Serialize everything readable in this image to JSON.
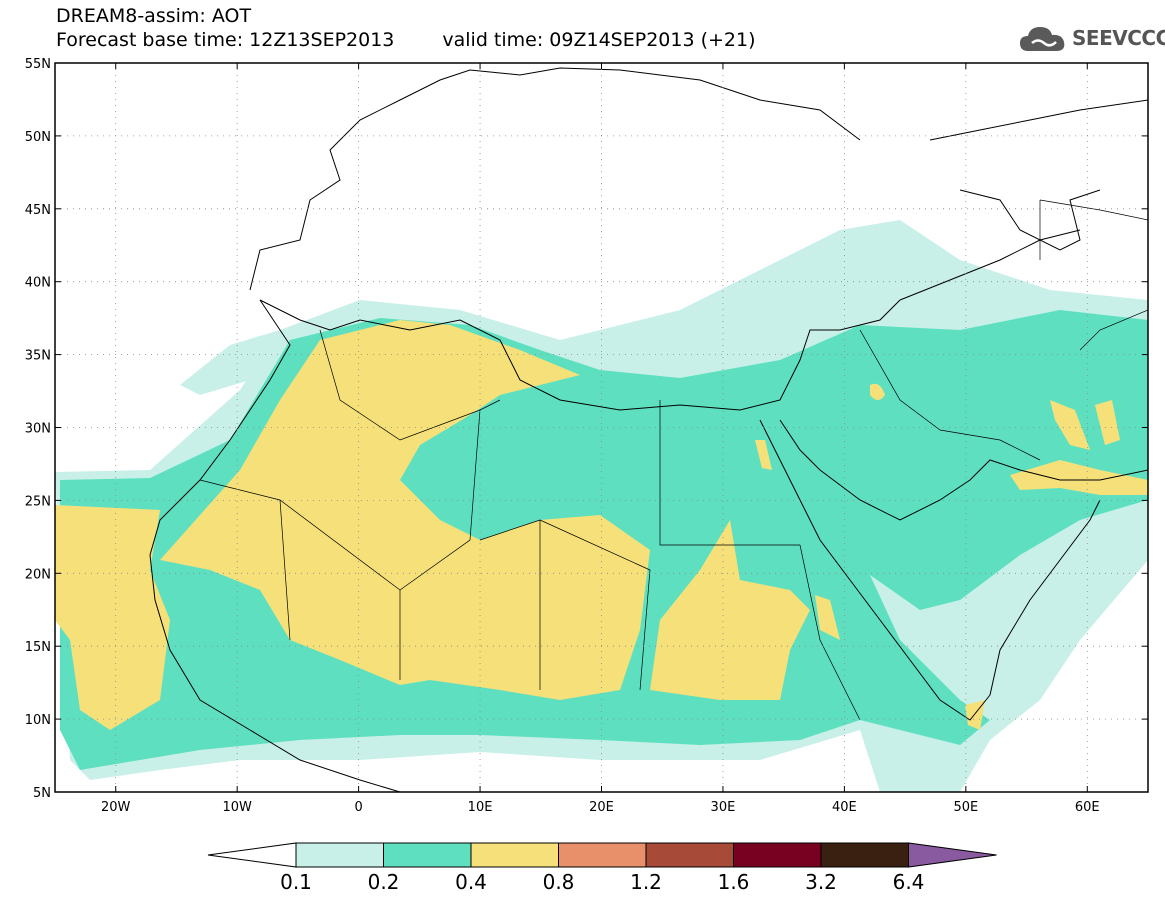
{
  "title": {
    "line1": "DREAM8-assim: AOT",
    "base_time": "Forecast base time: 12Z13SEP2013",
    "valid_time": "valid time: 09Z14SEP2013 (+21)"
  },
  "logo": {
    "text": "SEEVCCC",
    "icon": "cloud-icon",
    "color": "#555555"
  },
  "map": {
    "lat_range": [
      5,
      55
    ],
    "lon_range": [
      -25,
      65
    ],
    "lat_ticks": [
      "5N",
      "10N",
      "15N",
      "20N",
      "25N",
      "30N",
      "35N",
      "40N",
      "45N",
      "50N",
      "55N"
    ],
    "lon_ticks": [
      "20W",
      "10W",
      "0",
      "10E",
      "20E",
      "30E",
      "40E",
      "50E",
      "60E"
    ],
    "lat_tick_values": [
      5,
      10,
      15,
      20,
      25,
      30,
      35,
      40,
      45,
      50,
      55
    ],
    "lon_tick_values": [
      -20,
      -10,
      0,
      10,
      20,
      30,
      40,
      50,
      60
    ]
  },
  "colorbar": {
    "labels": [
      "0.1",
      "0.2",
      "0.4",
      "0.8",
      "1.2",
      "1.6",
      "3.2",
      "6.4"
    ],
    "colors": [
      "#ffffff",
      "#c8f0e8",
      "#5ee0c0",
      "#f5e07a",
      "#e8906a",
      "#a84a38",
      "#780020",
      "#3a2010",
      "#8a5aa0"
    ]
  }
}
